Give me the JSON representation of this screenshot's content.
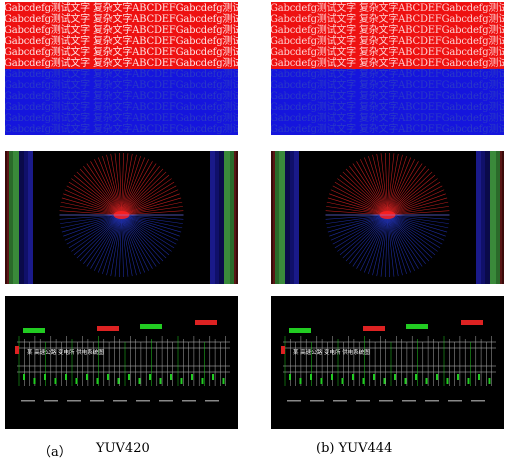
{
  "figure": {
    "text_sample_top": "Gabcdefg测试文字 复杂文字ABCDEFGabcdefg测试文字",
    "text_sample_bottom": "Gabcdefg测试文字 复杂文字ABCDEFGabcdefg测试文字",
    "schematic_title": "某 高速公路 变电所 供电系统图",
    "captions": {
      "left_label": "（a）",
      "left_name": "YUV420",
      "right_label": "(b) YUV444"
    },
    "colors": {
      "red_band": "#ee1111",
      "blue_band": "#1515dd",
      "star_red": "#cc2020",
      "star_blue": "#2030aa",
      "schem_green": "#22cc22",
      "schem_red": "#dd2222"
    }
  }
}
